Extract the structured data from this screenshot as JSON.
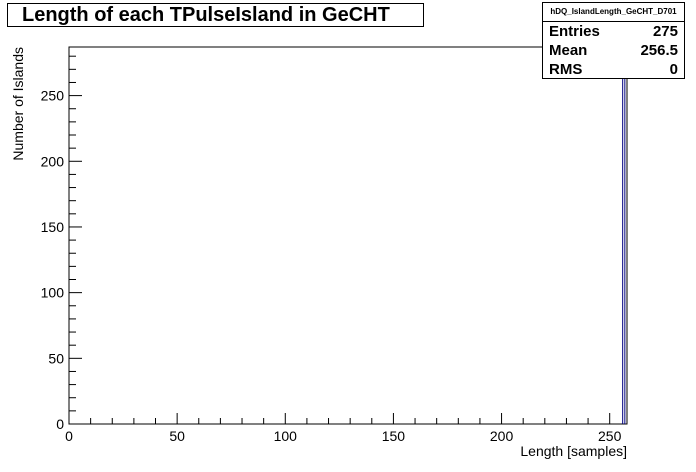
{
  "chart_data": {
    "type": "bar",
    "title": "Length of each TPulseIsland in GeCHT",
    "xlabel": "Length [samples]",
    "ylabel": "Number of Islands",
    "xlim": [
      0,
      258
    ],
    "ylim": [
      0,
      287
    ],
    "x_ticks": [
      0,
      50,
      100,
      150,
      200,
      250
    ],
    "y_ticks": [
      0,
      50,
      100,
      150,
      200,
      250
    ],
    "bins": [
      {
        "x0": 256,
        "x1": 257,
        "value": 275
      }
    ],
    "line_color": "#000080",
    "grid": false
  },
  "stats": {
    "name": "hDQ_IslandLength_GeCHT_D701",
    "rows": [
      {
        "label": "Entries",
        "value": "275"
      },
      {
        "label": "Mean",
        "value": "256.5"
      },
      {
        "label": "RMS",
        "value": "0"
      }
    ]
  }
}
